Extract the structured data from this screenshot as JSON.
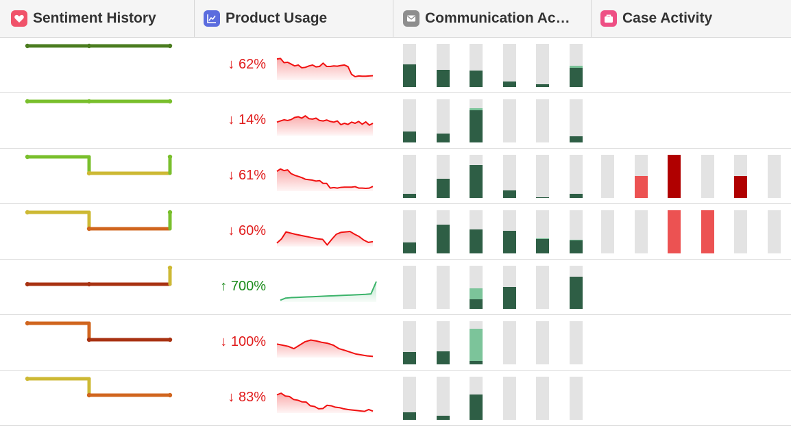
{
  "columns": [
    {
      "label": "Sentiment History",
      "icon": "heart-icon",
      "icon_color": "#f0536a"
    },
    {
      "label": "Product Usage",
      "icon": "line-chart-icon",
      "icon_color": "#5b6cde"
    },
    {
      "label": "Communication Ac…",
      "icon": "envelope-icon",
      "icon_color": "#8e8e8e"
    },
    {
      "label": "Case Activity",
      "icon": "briefcase-icon",
      "icon_color": "#ee4f84"
    }
  ],
  "colors": {
    "down": "#e01b1b",
    "up": "#1a8a1a",
    "comm_dark": "#2e5e45",
    "comm_light": "#7cc49a",
    "track": "#e3e3e3",
    "case_dark": "#b00000",
    "case_light": "#ec5252"
  },
  "rows": [
    {
      "sentiment": [
        {
          "color": "#4a7c1f",
          "level": 0
        },
        {
          "color": "#4a7c1f",
          "level": 0
        },
        {
          "color": "#4a7c1f",
          "level": 0
        }
      ],
      "usage": {
        "change": "↓ 62%",
        "dir": "down",
        "values": [
          0.88,
          0.9,
          0.72,
          0.74,
          0.66,
          0.58,
          0.62,
          0.5,
          0.52,
          0.58,
          0.62,
          0.54,
          0.56,
          0.7,
          0.56,
          0.56,
          0.58,
          0.57,
          0.6,
          0.62,
          0.55,
          0.22,
          0.12,
          0.15,
          0.14,
          0.14,
          0.15,
          0.16
        ]
      },
      "comm": [
        {
          "dark": 0.53,
          "light": 0
        },
        {
          "dark": 0.4,
          "light": 0
        },
        {
          "dark": 0.38,
          "light": 0
        },
        {
          "dark": 0.12,
          "light": 0
        },
        {
          "dark": 0.06,
          "light": 0
        },
        {
          "dark": 0.45,
          "light": 0.04
        }
      ],
      "cases": []
    },
    {
      "sentiment": [
        {
          "color": "#79bf2c",
          "level": 0
        },
        {
          "color": "#79bf2c",
          "level": 0
        },
        {
          "color": "#79bf2c",
          "level": 0
        }
      ],
      "usage": {
        "change": "↓ 14%",
        "dir": "down",
        "values": [
          0.55,
          0.6,
          0.65,
          0.62,
          0.66,
          0.75,
          0.78,
          0.72,
          0.82,
          0.7,
          0.68,
          0.72,
          0.62,
          0.6,
          0.64,
          0.58,
          0.55,
          0.6,
          0.44,
          0.5,
          0.45,
          0.55,
          0.5,
          0.58,
          0.46,
          0.56,
          0.42,
          0.5
        ]
      },
      "comm": [
        {
          "dark": 0.25,
          "light": 0
        },
        {
          "dark": 0.2,
          "light": 0
        },
        {
          "dark": 0.75,
          "light": 0.05
        },
        {
          "dark": 0,
          "light": 0
        },
        {
          "dark": 0,
          "light": 0
        },
        {
          "dark": 0.14,
          "light": 0
        }
      ],
      "cases": []
    },
    {
      "sentiment": [
        {
          "color": "#79bf2c",
          "level": 0
        },
        {
          "color": "#cdb934",
          "level": 1
        },
        {
          "color": "#79bf2c",
          "level": 0
        }
      ],
      "usage": {
        "change": "↓ 61%",
        "dir": "down",
        "values": [
          0.82,
          0.92,
          0.85,
          0.88,
          0.72,
          0.65,
          0.6,
          0.55,
          0.48,
          0.46,
          0.44,
          0.4,
          0.42,
          0.3,
          0.3,
          0.1,
          0.12,
          0.1,
          0.13,
          0.14,
          0.14,
          0.14,
          0.16,
          0.1,
          0.1,
          0.09,
          0.1,
          0.17
        ]
      },
      "comm": [
        {
          "dark": 0.09,
          "light": 0
        },
        {
          "dark": 0.45,
          "light": 0
        },
        {
          "dark": 0.76,
          "light": 0
        },
        {
          "dark": 0.18,
          "light": 0
        },
        {
          "dark": 0.02,
          "light": 0
        },
        {
          "dark": 0.1,
          "light": 0
        }
      ],
      "cases": [
        {
          "fill": 0,
          "tone": "light"
        },
        {
          "fill": 0.5,
          "tone": "light"
        },
        {
          "fill": 1,
          "tone": "dark"
        },
        {
          "fill": 0,
          "tone": "light"
        },
        {
          "fill": 0.5,
          "tone": "dark"
        },
        {
          "fill": 0,
          "tone": "light"
        }
      ]
    },
    {
      "sentiment": [
        {
          "color": "#cdb934",
          "level": 0
        },
        {
          "color": "#d0651e",
          "level": 1
        },
        {
          "color": "#79bf2c",
          "level": 0
        }
      ],
      "usage": {
        "change": "↓ 60%",
        "dir": "down",
        "values": [
          0.12,
          0.3,
          0.6,
          0.55,
          0.5,
          0.46,
          0.42,
          0.38,
          0.34,
          0.3,
          0.28,
          0.04,
          0.28,
          0.5,
          0.58,
          0.6,
          0.62,
          0.5,
          0.4,
          0.25,
          0.15,
          0.18
        ]
      },
      "comm": [
        {
          "dark": 0.25,
          "light": 0
        },
        {
          "dark": 0.66,
          "light": 0
        },
        {
          "dark": 0.56,
          "light": 0
        },
        {
          "dark": 0.53,
          "light": 0
        },
        {
          "dark": 0.34,
          "light": 0.02
        },
        {
          "dark": 0.3,
          "light": 0.02
        }
      ],
      "cases": [
        {
          "fill": 0,
          "tone": "light"
        },
        {
          "fill": 0,
          "tone": "light"
        },
        {
          "fill": 1,
          "tone": "light"
        },
        {
          "fill": 1,
          "tone": "light"
        },
        {
          "fill": 0,
          "tone": "light"
        },
        {
          "fill": 0,
          "tone": "light"
        }
      ]
    },
    {
      "sentiment": [
        {
          "color": "#a83212",
          "level": 1
        },
        {
          "color": "#a83212",
          "level": 1
        },
        {
          "color": "#cdb934",
          "level": 0
        }
      ],
      "usage": {
        "change": "↑ 700%",
        "dir": "up",
        "values": [
          0.05,
          0.14,
          0.16,
          0.17,
          0.18,
          0.19,
          0.2,
          0.21,
          0.22,
          0.23,
          0.24,
          0.25,
          0.26,
          0.27,
          0.28,
          0.29,
          0.3,
          0.32,
          0.85
        ]
      },
      "comm": [
        {
          "dark": 0,
          "light": 0
        },
        {
          "dark": 0,
          "light": 0
        },
        {
          "dark": 0.23,
          "light": 0.25
        },
        {
          "dark": 0.5,
          "light": 0
        },
        {
          "dark": 0,
          "light": 0
        },
        {
          "dark": 0.75,
          "light": 0
        }
      ],
      "cases": []
    },
    {
      "sentiment": [
        {
          "color": "#d0651e",
          "level": 0
        },
        {
          "color": "#a83212",
          "level": 1
        },
        {
          "color": "#a83212",
          "level": 1
        }
      ],
      "usage": {
        "change": "↓ 100%",
        "dir": "down",
        "values": [
          0.55,
          0.5,
          0.45,
          0.35,
          0.5,
          0.65,
          0.72,
          0.68,
          0.62,
          0.58,
          0.5,
          0.35,
          0.28,
          0.2,
          0.12,
          0.08,
          0.04,
          0.02
        ]
      },
      "comm": [
        {
          "dark": 0.28,
          "light": 0
        },
        {
          "dark": 0.3,
          "light": 0
        },
        {
          "dark": 0.08,
          "light": 0.75
        },
        {
          "dark": 0,
          "light": 0
        },
        {
          "dark": 0,
          "light": 0
        },
        {
          "dark": 0,
          "light": 0
        }
      ],
      "cases": []
    },
    {
      "sentiment": [
        {
          "color": "#cdb934",
          "level": 0
        },
        {
          "color": "#d0651e",
          "level": 1
        },
        {
          "color": "#d0651e",
          "level": 1
        }
      ],
      "usage": {
        "change": "↓ 83%",
        "dir": "down",
        "values": [
          0.75,
          0.82,
          0.7,
          0.68,
          0.55,
          0.52,
          0.45,
          0.44,
          0.28,
          0.25,
          0.15,
          0.16,
          0.3,
          0.28,
          0.22,
          0.2,
          0.15,
          0.12,
          0.1,
          0.08,
          0.06,
          0.04,
          0.12,
          0.05
        ]
      },
      "comm": [
        {
          "dark": 0.18,
          "light": 0
        },
        {
          "dark": 0.09,
          "light": 0
        },
        {
          "dark": 0.58,
          "light": 0
        },
        {
          "dark": 0,
          "light": 0
        },
        {
          "dark": 0,
          "light": 0
        },
        {
          "dark": 0,
          "light": 0
        }
      ],
      "cases": []
    }
  ]
}
